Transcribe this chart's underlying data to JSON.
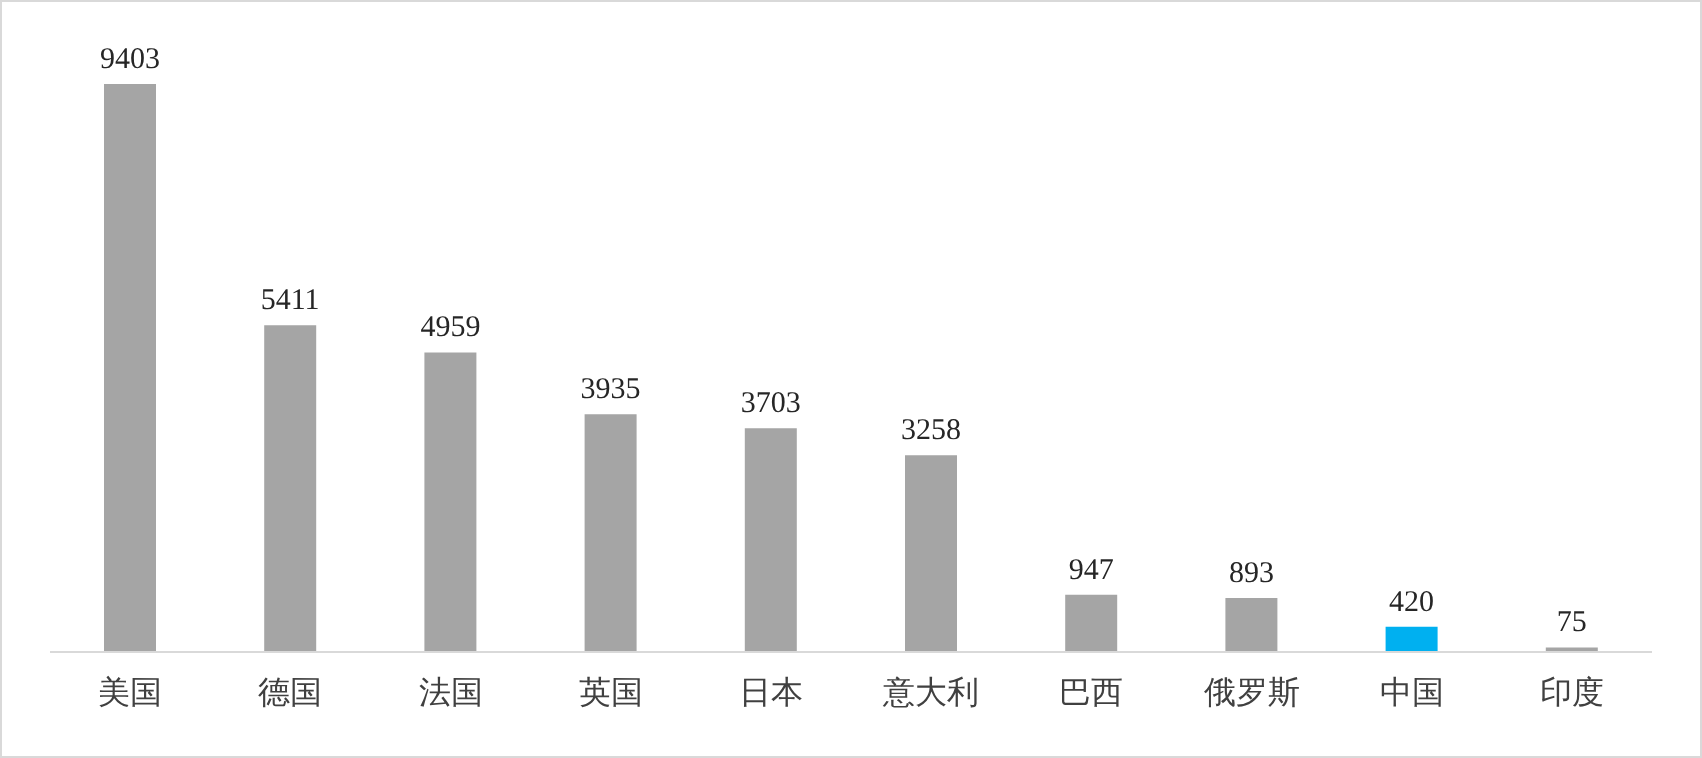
{
  "chart_data": {
    "type": "bar",
    "categories": [
      "美国",
      "德国",
      "法国",
      "英国",
      "日本",
      "意大利",
      "巴西",
      "俄罗斯",
      "中国",
      "印度"
    ],
    "values": [
      9403,
      5411,
      4959,
      3935,
      3703,
      3258,
      947,
      893,
      420,
      75
    ],
    "colors": [
      "#a5a5a5",
      "#a5a5a5",
      "#a5a5a5",
      "#a5a5a5",
      "#a5a5a5",
      "#a5a5a5",
      "#a5a5a5",
      "#a5a5a5",
      "#00b0f0",
      "#a5a5a5"
    ],
    "data_labels": true,
    "grid": false,
    "legend": false
  }
}
